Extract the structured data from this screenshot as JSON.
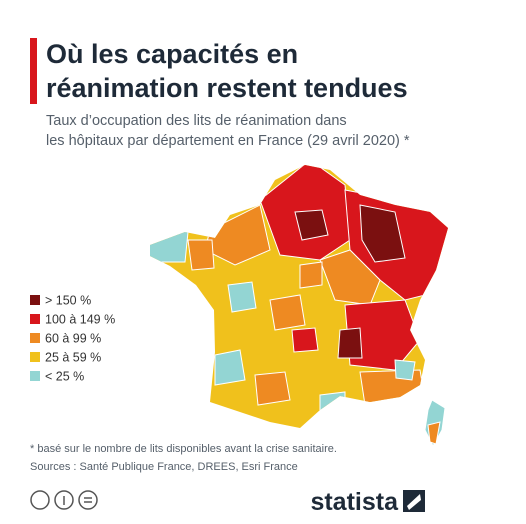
{
  "header": {
    "title_lines": [
      "Où les capacités en",
      "réanimation restent tendues"
    ],
    "subtitle_lines": [
      "Taux d’occupation des lits de réanimation dans",
      "les hôpitaux par département en France (29 avril 2020) *"
    ]
  },
  "legend": {
    "items": [
      {
        "label": "> 150 %",
        "color": "#7b1010"
      },
      {
        "label": "100 à 149 %",
        "color": "#d8161c"
      },
      {
        "label": "60 à 99 %",
        "color": "#ee8a22"
      },
      {
        "label": "25 à 59 %",
        "color": "#f0c11c"
      },
      {
        "label": "< 25 %",
        "color": "#93d5d3"
      }
    ]
  },
  "footer": {
    "note": "* basé sur le nombre de lits disponibles avant la crise sanitaire.",
    "sources": "Sources : Santé Publique France, DREES, Esri France",
    "brand": "statista"
  }
}
